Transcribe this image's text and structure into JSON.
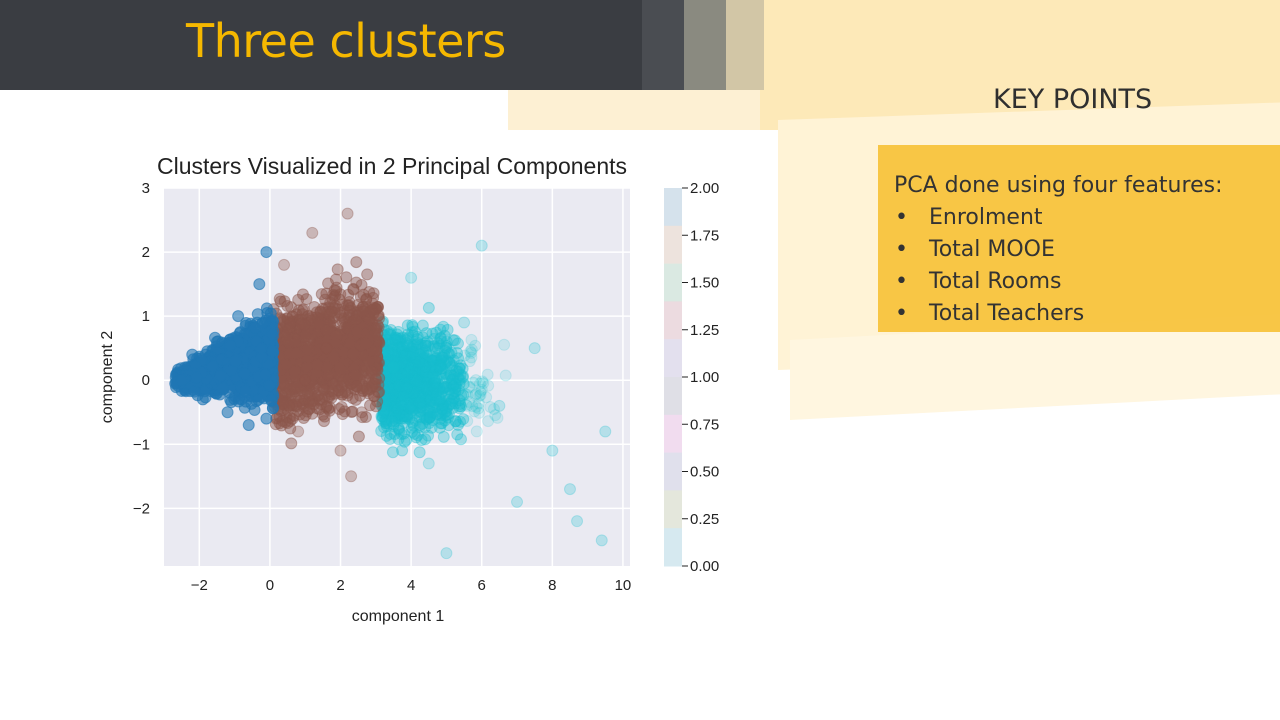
{
  "slide": {
    "title": "Three clusters",
    "key_points_heading": "KEY POINTS",
    "key_points_intro": "PCA done using four features:",
    "key_points": [
      "Enrolment",
      "Total MOOE",
      "Total Rooms",
      "Total Teachers"
    ],
    "bullet": "•"
  },
  "chart_data": {
    "type": "scatter",
    "title": "Clusters Visualized in 2 Principal Components",
    "xlabel": "component 1",
    "ylabel": "component 2",
    "xlim": [
      -3,
      10.2
    ],
    "ylim": [
      -2.9,
      3.0
    ],
    "xticks": [
      "−2",
      "0",
      "2",
      "4",
      "6",
      "8",
      "10"
    ],
    "xtick_values": [
      -2,
      0,
      2,
      4,
      6,
      8,
      10
    ],
    "yticks": [
      "3",
      "2",
      "1",
      "0",
      "−1",
      "−2"
    ],
    "ytick_values": [
      3,
      2,
      1,
      0,
      -1,
      -2
    ],
    "grid": true,
    "colorbar": {
      "ticks": [
        "2.00",
        "1.75",
        "1.50",
        "1.25",
        "1.00",
        "0.75",
        "0.50",
        "0.25",
        "0.00"
      ],
      "tick_values": [
        2.0,
        1.75,
        1.5,
        1.25,
        1.0,
        0.75,
        0.5,
        0.25,
        0.0
      ],
      "colors": [
        "#d5e2ec",
        "#ede3dd",
        "#dae9e2",
        "#ecdbe0",
        "#e3e0ee",
        "#dfdfe6",
        "#f1dcef",
        "#e0e0ec",
        "#e4e7dc",
        "#d6e9f0"
      ]
    },
    "series": [
      {
        "cluster": 0,
        "color": "#1f77b4",
        "x_range": [
          -2.7,
          0.1
        ],
        "y_range": [
          -0.8,
          2.2
        ],
        "points": [
          [
            -2.5,
            0
          ],
          [
            -2.2,
            0.4
          ],
          [
            -1.9,
            -0.3
          ],
          [
            -1.5,
            0.6
          ],
          [
            -1.2,
            -0.5
          ],
          [
            -0.9,
            1.0
          ],
          [
            -0.6,
            -0.7
          ],
          [
            -0.3,
            1.5
          ],
          [
            -0.1,
            2.0
          ],
          [
            -0.1,
            -0.6
          ]
        ]
      },
      {
        "cluster": 1,
        "color": "#8c564b",
        "x_range": [
          0.1,
          3.1
        ],
        "y_range": [
          -1.5,
          2.8
        ],
        "points": [
          [
            0.4,
            1.8
          ],
          [
            0.8,
            -0.8
          ],
          [
            1.2,
            2.3
          ],
          [
            1.6,
            0.5
          ],
          [
            2.0,
            -1.1
          ],
          [
            2.2,
            2.6
          ],
          [
            2.6,
            -0.5
          ],
          [
            2.9,
            1.2
          ],
          [
            1.0,
            0.0
          ],
          [
            2.3,
            -1.5
          ]
        ]
      },
      {
        "cluster": 2,
        "color": "#17becf",
        "x_range": [
          3.1,
          9.6
        ],
        "y_range": [
          -2.7,
          2.3
        ],
        "points": [
          [
            3.5,
            0.2
          ],
          [
            4.0,
            1.6
          ],
          [
            4.5,
            -1.3
          ],
          [
            5.0,
            -2.7
          ],
          [
            5.5,
            0.9
          ],
          [
            6.0,
            2.1
          ],
          [
            6.5,
            -0.4
          ],
          [
            7.0,
            -1.9
          ],
          [
            7.5,
            0.5
          ],
          [
            8.0,
            -1.1
          ],
          [
            8.7,
            -2.2
          ],
          [
            9.5,
            -0.8
          ],
          [
            9.4,
            -2.5
          ],
          [
            8.5,
            -1.7
          ]
        ]
      }
    ]
  }
}
